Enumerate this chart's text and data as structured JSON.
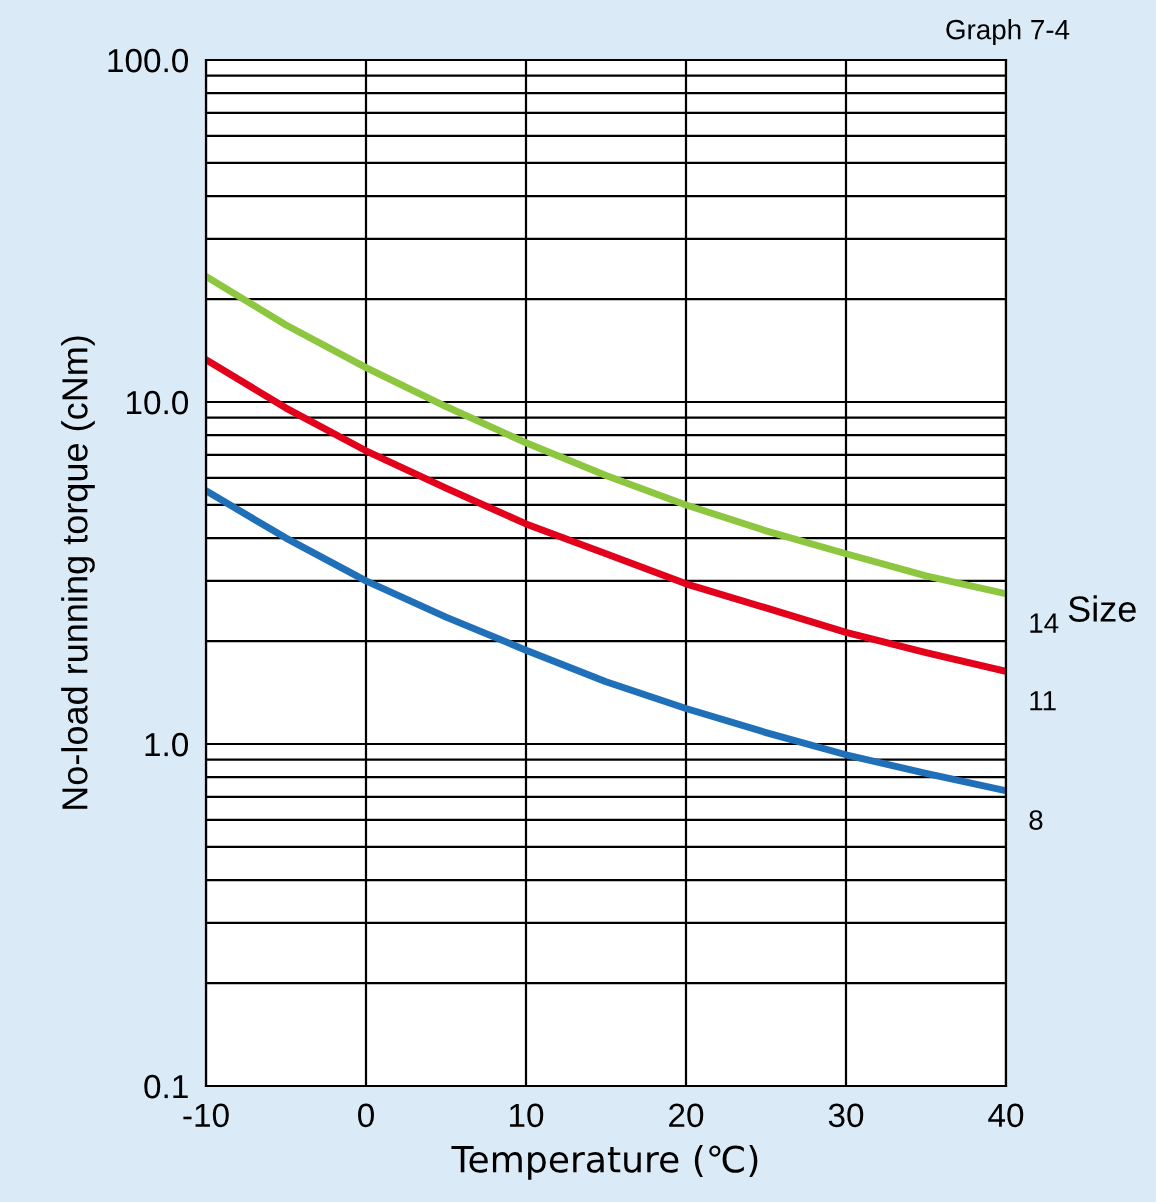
{
  "chart_data": {
    "type": "line",
    "xlabel": "Temperature (℃)",
    "ylabel": "No-load running torque (cNm)",
    "x": [
      -10,
      -5,
      0,
      5,
      10,
      15,
      20,
      25,
      30,
      35,
      40
    ],
    "series": [
      {
        "name": "14",
        "color": "#8dc63f",
        "values": [
          23.3,
          16.8,
          12.6,
          9.7,
          7.6,
          6.1,
          5.0,
          4.2,
          3.6,
          3.1,
          2.75
        ]
      },
      {
        "name": "11",
        "color": "#e3001b",
        "values": [
          13.3,
          9.6,
          7.2,
          5.6,
          4.4,
          3.6,
          2.94,
          2.5,
          2.12,
          1.85,
          1.63
        ]
      },
      {
        "name": "8",
        "color": "#1f6fb9",
        "values": [
          5.5,
          4.0,
          3.0,
          2.35,
          1.88,
          1.52,
          1.27,
          1.08,
          0.93,
          0.82,
          0.73
        ]
      }
    ],
    "log": "y",
    "xlim": [
      -10,
      40
    ],
    "ylim": [
      0.1,
      100
    ],
    "xticks": [
      -10,
      0,
      10,
      20,
      30,
      40
    ],
    "yticks": [
      {
        "value": 0.1,
        "label": "0.1"
      },
      {
        "value": 0.2,
        "label": null
      },
      {
        "value": 0.3,
        "label": null
      },
      {
        "value": 0.4,
        "label": null
      },
      {
        "value": 0.5,
        "label": null
      },
      {
        "value": 0.6,
        "label": null
      },
      {
        "value": 0.7,
        "label": null
      },
      {
        "value": 0.8,
        "label": null
      },
      {
        "value": 0.9,
        "label": null
      },
      {
        "value": 1,
        "label": "1.0"
      },
      {
        "value": 2,
        "label": null
      },
      {
        "value": 3,
        "label": null
      },
      {
        "value": 4,
        "label": null
      },
      {
        "value": 5,
        "label": null
      },
      {
        "value": 6,
        "label": null
      },
      {
        "value": 7,
        "label": null
      },
      {
        "value": 8,
        "label": null
      },
      {
        "value": 9,
        "label": null
      },
      {
        "value": 10,
        "label": "10.0"
      },
      {
        "value": 20,
        "label": null
      },
      {
        "value": 30,
        "label": null
      },
      {
        "value": 40,
        "label": null
      },
      {
        "value": 50,
        "label": null
      },
      {
        "value": 60,
        "label": null
      },
      {
        "value": 70,
        "label": null
      },
      {
        "value": 80,
        "label": null
      },
      {
        "value": 90,
        "label": null
      },
      {
        "value": 100,
        "label": "100.0"
      }
    ],
    "grid": true,
    "legend_title": "Size",
    "annotations": [
      "Graph 7-4"
    ]
  }
}
